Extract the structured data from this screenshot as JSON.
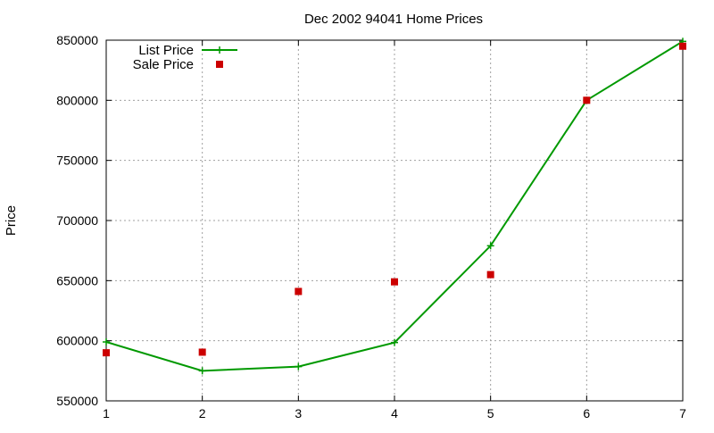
{
  "chart_data": {
    "type": "line",
    "title": "Dec 2002 94041 Home Prices",
    "xlabel": "",
    "ylabel": "Price",
    "xlim": [
      1,
      7
    ],
    "ylim": [
      550000,
      850000
    ],
    "x_ticks": [
      1,
      2,
      3,
      4,
      5,
      6,
      7
    ],
    "y_ticks": [
      550000,
      600000,
      650000,
      700000,
      750000,
      800000,
      850000
    ],
    "grid": true,
    "legend_position": "top-left",
    "series": [
      {
        "name": "List Price",
        "style": "linespoints",
        "marker": "plus",
        "color": "#009900",
        "x": [
          1,
          2,
          3,
          4,
          5,
          6,
          7
        ],
        "y": [
          599000,
          575000,
          578500,
          598500,
          679000,
          800000,
          849000
        ]
      },
      {
        "name": "Sale Price",
        "style": "points",
        "marker": "square",
        "color": "#cc0000",
        "x": [
          1,
          2,
          3,
          4,
          5,
          6,
          7
        ],
        "y": [
          590000,
          590500,
          641000,
          649000,
          655000,
          800000,
          845000
        ]
      }
    ]
  }
}
